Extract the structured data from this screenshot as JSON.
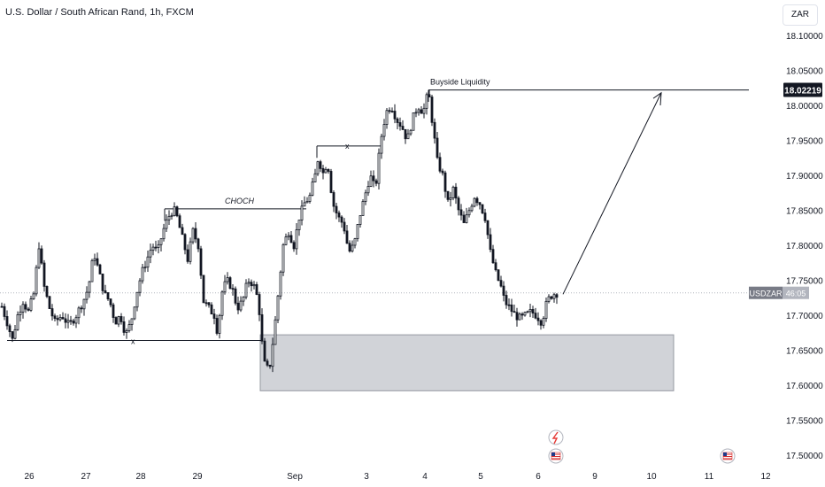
{
  "title": "U.S. Dollar / South African Rand, 1h, FXCM",
  "currency_button": "ZAR",
  "chart_data": {
    "type": "candlestick",
    "symbol": "USDZAR",
    "ylim": [
      17.49,
      18.135
    ],
    "y_ticks": [
      "18.10000",
      "18.05000",
      "18.00000",
      "17.95000",
      "17.90000",
      "17.85000",
      "17.80000",
      "17.75000",
      "17.70000",
      "17.65000",
      "17.60000",
      "17.55000",
      "17.50000"
    ],
    "x_ticks": [
      "26",
      "27",
      "28",
      "29",
      "Sep",
      "3",
      "4",
      "5",
      "6",
      "9",
      "10",
      "11",
      "12"
    ],
    "target_price": "18.02219",
    "current_price_label": "USDZAR",
    "countdown": "46:05",
    "current_price": 17.732,
    "annotations": {
      "buyside": "Buyside Liquidity",
      "choch": "CHOCH",
      "x1": "x",
      "x2": "x"
    },
    "demand_zone": {
      "top": 17.672,
      "bottom": 17.592
    },
    "price_path": [
      [
        0,
        17.72
      ],
      [
        8,
        17.69
      ],
      [
        14,
        17.665
      ],
      [
        20,
        17.7
      ],
      [
        26,
        17.72
      ],
      [
        32,
        17.705
      ],
      [
        38,
        17.73
      ],
      [
        44,
        17.8
      ],
      [
        50,
        17.74
      ],
      [
        56,
        17.71
      ],
      [
        62,
        17.69
      ],
      [
        70,
        17.7
      ],
      [
        78,
        17.685
      ],
      [
        86,
        17.7
      ],
      [
        94,
        17.72
      ],
      [
        100,
        17.74
      ],
      [
        106,
        17.79
      ],
      [
        112,
        17.76
      ],
      [
        118,
        17.73
      ],
      [
        124,
        17.72
      ],
      [
        130,
        17.69
      ],
      [
        136,
        17.7
      ],
      [
        142,
        17.672
      ],
      [
        148,
        17.69
      ],
      [
        154,
        17.73
      ],
      [
        160,
        17.76
      ],
      [
        166,
        17.78
      ],
      [
        172,
        17.8
      ],
      [
        178,
        17.79
      ],
      [
        184,
        17.82
      ],
      [
        190,
        17.84
      ],
      [
        196,
        17.852
      ],
      [
        200,
        17.84
      ],
      [
        206,
        17.81
      ],
      [
        212,
        17.78
      ],
      [
        218,
        17.82
      ],
      [
        224,
        17.8
      ],
      [
        230,
        17.72
      ],
      [
        236,
        17.71
      ],
      [
        242,
        17.7
      ],
      [
        246,
        17.673
      ],
      [
        250,
        17.73
      ],
      [
        256,
        17.75
      ],
      [
        262,
        17.74
      ],
      [
        268,
        17.71
      ],
      [
        274,
        17.72
      ],
      [
        280,
        17.75
      ],
      [
        286,
        17.745
      ],
      [
        292,
        17.72
      ],
      [
        296,
        17.66
      ],
      [
        300,
        17.62
      ],
      [
        305,
        17.63
      ],
      [
        310,
        17.68
      ],
      [
        315,
        17.74
      ],
      [
        320,
        17.8
      ],
      [
        326,
        17.82
      ],
      [
        332,
        17.8
      ],
      [
        338,
        17.84
      ],
      [
        344,
        17.86
      ],
      [
        350,
        17.87
      ],
      [
        356,
        17.9
      ],
      [
        360,
        17.93
      ],
      [
        364,
        17.9
      ],
      [
        370,
        17.92
      ],
      [
        376,
        17.86
      ],
      [
        382,
        17.84
      ],
      [
        388,
        17.83
      ],
      [
        394,
        17.79
      ],
      [
        400,
        17.8
      ],
      [
        406,
        17.84
      ],
      [
        412,
        17.87
      ],
      [
        418,
        17.9
      ],
      [
        424,
        17.88
      ],
      [
        430,
        17.95
      ],
      [
        436,
        17.99
      ],
      [
        442,
        18.0
      ],
      [
        448,
        17.98
      ],
      [
        454,
        17.97
      ],
      [
        460,
        17.95
      ],
      [
        466,
        17.98
      ],
      [
        472,
        18.0
      ],
      [
        478,
        17.99
      ],
      [
        484,
        18.02
      ],
      [
        490,
        17.96
      ],
      [
        494,
        17.92
      ],
      [
        500,
        17.9
      ],
      [
        506,
        17.86
      ],
      [
        512,
        17.88
      ],
      [
        518,
        17.85
      ],
      [
        524,
        17.83
      ],
      [
        530,
        17.85
      ],
      [
        536,
        17.87
      ],
      [
        542,
        17.86
      ],
      [
        548,
        17.84
      ],
      [
        554,
        17.79
      ],
      [
        560,
        17.76
      ],
      [
        566,
        17.74
      ],
      [
        570,
        17.72
      ],
      [
        576,
        17.71
      ],
      [
        582,
        17.7
      ],
      [
        588,
        17.695
      ],
      [
        594,
        17.7
      ],
      [
        600,
        17.705
      ],
      [
        606,
        17.7
      ],
      [
        612,
        17.69
      ],
      [
        618,
        17.72
      ],
      [
        624,
        17.73
      ],
      [
        630,
        17.732
      ]
    ]
  }
}
